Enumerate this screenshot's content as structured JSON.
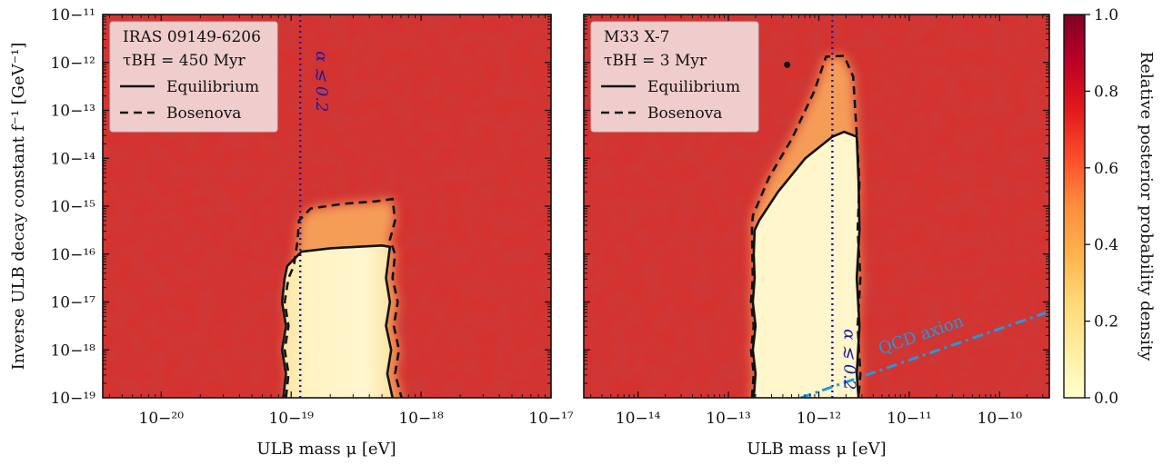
{
  "chart_data": [
    {
      "type": "heatmap",
      "panel": "left",
      "xlabel": "ULB mass μ [eV]",
      "ylabel": "Inverse ULB decay constant f⁻¹ [GeV⁻¹]",
      "x_scale": "log",
      "y_scale": "log",
      "xlim_log10": [
        -20.45,
        -17
      ],
      "ylim_log10": [
        -19,
        -11
      ],
      "x_ticks_log10": [
        -20,
        -19,
        -18,
        -17
      ],
      "y_ticks_log10": [
        -19,
        -18,
        -17,
        -16,
        -15,
        -14,
        -13,
        -12,
        -11
      ],
      "legend": {
        "title": "IRAS 09149-6206",
        "subtitle": "τBH = 450 Myr",
        "entries": [
          {
            "label": "Equilibrium",
            "style": "solid"
          },
          {
            "label": "Bosenova",
            "style": "dashed"
          }
        ],
        "placement": "top-left"
      },
      "annotation": {
        "text": "α ≲ 0.2",
        "x_log10": -18.93,
        "y_log10": -12.4,
        "color": "#1a1aa6"
      },
      "alpha_line_x_log10": -18.93,
      "equilibrium_contour": [
        [
          -19.06,
          -19
        ],
        [
          -19.04,
          -18.5
        ],
        [
          -19.07,
          -18
        ],
        [
          -19.04,
          -17.5
        ],
        [
          -19.07,
          -17
        ],
        [
          -19.05,
          -16.5
        ],
        [
          -19.03,
          -16.25
        ],
        [
          -18.92,
          -15.95
        ],
        [
          -18.7,
          -15.88
        ],
        [
          -18.5,
          -15.85
        ],
        [
          -18.3,
          -15.82
        ],
        [
          -18.24,
          -15.85
        ],
        [
          -18.27,
          -16.5
        ],
        [
          -18.24,
          -17
        ],
        [
          -18.27,
          -17.5
        ],
        [
          -18.23,
          -18
        ],
        [
          -18.26,
          -18.5
        ],
        [
          -18.22,
          -19
        ]
      ],
      "bosenova_contour": [
        [
          -19.04,
          -19
        ],
        [
          -19.02,
          -18.5
        ],
        [
          -19.05,
          -18
        ],
        [
          -19.02,
          -17.5
        ],
        [
          -19.05,
          -17
        ],
        [
          -19.02,
          -16.5
        ],
        [
          -18.98,
          -16.25
        ],
        [
          -18.95,
          -15.72
        ],
        [
          -18.94,
          -15.3
        ],
        [
          -18.85,
          -15.05
        ],
        [
          -18.6,
          -14.95
        ],
        [
          -18.35,
          -14.9
        ],
        [
          -18.22,
          -14.85
        ],
        [
          -18.2,
          -15.3
        ],
        [
          -18.24,
          -15.7
        ],
        [
          -18.2,
          -16
        ],
        [
          -18.22,
          -16.5
        ],
        [
          -18.18,
          -17
        ],
        [
          -18.21,
          -17.5
        ],
        [
          -18.17,
          -18
        ],
        [
          -18.2,
          -18.5
        ],
        [
          -18.15,
          -19
        ]
      ]
    },
    {
      "type": "heatmap",
      "panel": "right",
      "xlabel": "ULB mass μ [eV]",
      "x_scale": "log",
      "y_scale": "log",
      "xlim_log10": [
        -14.6,
        -9.45
      ],
      "ylim_log10": [
        -19,
        -11
      ],
      "x_ticks_log10": [
        -14,
        -13,
        -12,
        -11,
        -10
      ],
      "legend": {
        "title": "M33 X-7",
        "subtitle": "τBH = 3 Myr",
        "entries": [
          {
            "label": "Equilibrium",
            "style": "solid"
          },
          {
            "label": "Bosenova",
            "style": "dashed"
          }
        ],
        "placement": "top-left"
      },
      "annotation": {
        "text": "α ≲ 0.2",
        "x_log10": -11.9,
        "y_log10": -18.2,
        "color": "#1a1aa6"
      },
      "alpha_line_x_log10": -11.85,
      "qcd_axion": {
        "label": "QCD axion",
        "x_log10": [
          -12.2,
          -9.45
        ],
        "y_log10": [
          -19,
          -17.2
        ],
        "color": "#1e9be0"
      },
      "equilibrium_contour": [
        [
          -12.72,
          -19
        ],
        [
          -12.7,
          -18.5
        ],
        [
          -12.73,
          -18
        ],
        [
          -12.7,
          -17.5
        ],
        [
          -12.73,
          -17
        ],
        [
          -12.71,
          -16.5
        ],
        [
          -12.72,
          -16
        ],
        [
          -12.71,
          -15.5
        ],
        [
          -12.66,
          -15.3
        ],
        [
          -12.45,
          -14.7
        ],
        [
          -12.15,
          -14.0
        ],
        [
          -11.85,
          -13.55
        ],
        [
          -11.72,
          -13.45
        ],
        [
          -11.58,
          -13.55
        ],
        [
          -11.56,
          -14.5
        ],
        [
          -11.55,
          -15.5
        ],
        [
          -11.58,
          -16.5
        ],
        [
          -11.55,
          -17.5
        ],
        [
          -11.58,
          -18.5
        ],
        [
          -11.56,
          -19
        ]
      ],
      "bosenova_contour": [
        [
          -12.74,
          -19
        ],
        [
          -12.72,
          -18.5
        ],
        [
          -12.75,
          -18
        ],
        [
          -12.72,
          -17.5
        ],
        [
          -12.75,
          -17
        ],
        [
          -12.73,
          -16.5
        ],
        [
          -12.74,
          -15.5
        ],
        [
          -12.73,
          -15.2
        ],
        [
          -12.55,
          -14.4
        ],
        [
          -12.3,
          -13.6
        ],
        [
          -12.05,
          -12.6
        ],
        [
          -11.92,
          -11.88
        ],
        [
          -11.72,
          -11.86
        ],
        [
          -11.62,
          -12.3
        ],
        [
          -11.58,
          -13.5
        ],
        [
          -11.55,
          -14.5
        ],
        [
          -11.57,
          -15.5
        ],
        [
          -11.54,
          -16.5
        ],
        [
          -11.57,
          -17.5
        ],
        [
          -11.54,
          -18.5
        ],
        [
          -11.56,
          -19
        ]
      ]
    }
  ],
  "colorbar": {
    "label": "Relative posterior probability density",
    "range": [
      0,
      1
    ],
    "ticks": [
      "0.0",
      "0.2",
      "0.4",
      "0.6",
      "0.8",
      "1.0"
    ],
    "colors": [
      "#ffffcc",
      "#ffeda0",
      "#fed976",
      "#feb24c",
      "#fd8d3c",
      "#fc4e2a",
      "#e31a1c",
      "#bd0026",
      "#800026"
    ]
  },
  "background_level": 0.82,
  "background_color": "#d5322f"
}
